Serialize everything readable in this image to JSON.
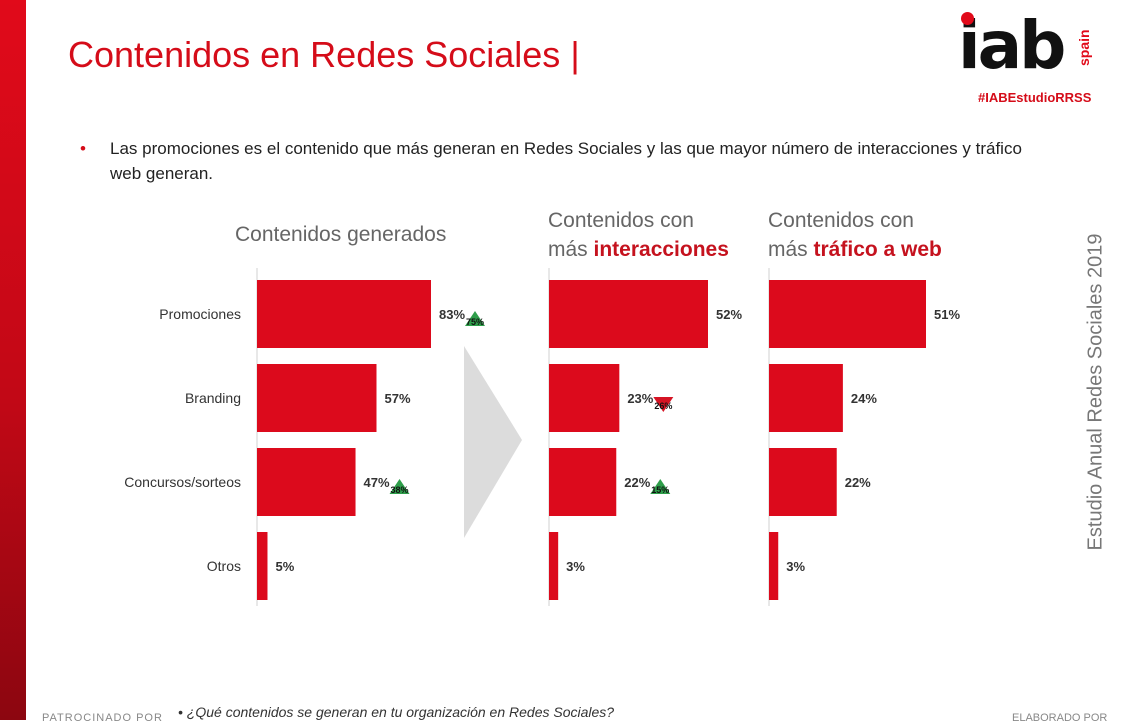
{
  "slide": {
    "title": "Contenidos en Redes Sociales |",
    "bullet": "Las promociones es el contenido que más generan en Redes Sociales y las que mayor número de interacciones y tráfico web generan.",
    "side_label": "Estudio Anual Redes Sociales 2019",
    "question": "•   ¿Qué contenidos se generan en tu organización en Redes Sociales?",
    "sponsor": "PATROCINADO POR",
    "footer_right": "ELABORADO POR"
  },
  "logo": {
    "word": "iab",
    "region": "spain",
    "hashtag": "#IABEstudioRRSS"
  },
  "colors": {
    "accent": "#d50c19",
    "bar": "#dc0a1c",
    "up": "#2e9e4a",
    "down": "#d51424",
    "arrow": "#dcdcdc"
  },
  "panels": [
    {
      "line1": "Contenidos generados",
      "line2_prefix": "",
      "line2_highlight": ""
    },
    {
      "line1": "Contenidos con",
      "line2_prefix": "más ",
      "line2_highlight": "interacciones"
    },
    {
      "line1": "Contenidos con",
      "line2_prefix": "más ",
      "line2_highlight": "tráfico a web"
    }
  ],
  "chart_data": [
    {
      "type": "bar",
      "orientation": "horizontal",
      "title": "Contenidos generados",
      "categories": [
        "Promociones",
        "Branding",
        "Concursos/sorteos",
        "Otros"
      ],
      "values": [
        83,
        57,
        47,
        5
      ],
      "value_labels": [
        "83%",
        "57%",
        "47%",
        "5%"
      ],
      "previous_year_changes": [
        {
          "category": "Promociones",
          "label": "75%",
          "direction": "up"
        },
        {
          "category": "Concursos/sorteos",
          "label": "38%",
          "direction": "up"
        }
      ]
    },
    {
      "type": "bar",
      "orientation": "horizontal",
      "title": "Contenidos con más interacciones",
      "categories": [
        "Promociones",
        "Branding",
        "Concursos/sorteos",
        "Otros"
      ],
      "values": [
        52,
        23,
        22,
        3
      ],
      "value_labels": [
        "52%",
        "23%",
        "22%",
        "3%"
      ],
      "previous_year_changes": [
        {
          "category": "Branding",
          "label": "26%",
          "direction": "down"
        },
        {
          "category": "Concursos/sorteos",
          "label": "15%",
          "direction": "up"
        }
      ]
    },
    {
      "type": "bar",
      "orientation": "horizontal",
      "title": "Contenidos con más tráfico a web",
      "categories": [
        "Promociones",
        "Branding",
        "Concursos/sorteos",
        "Otros"
      ],
      "values": [
        51,
        24,
        22,
        3
      ],
      "value_labels": [
        "51%",
        "24%",
        "22%",
        "3%"
      ],
      "previous_year_changes": []
    }
  ]
}
